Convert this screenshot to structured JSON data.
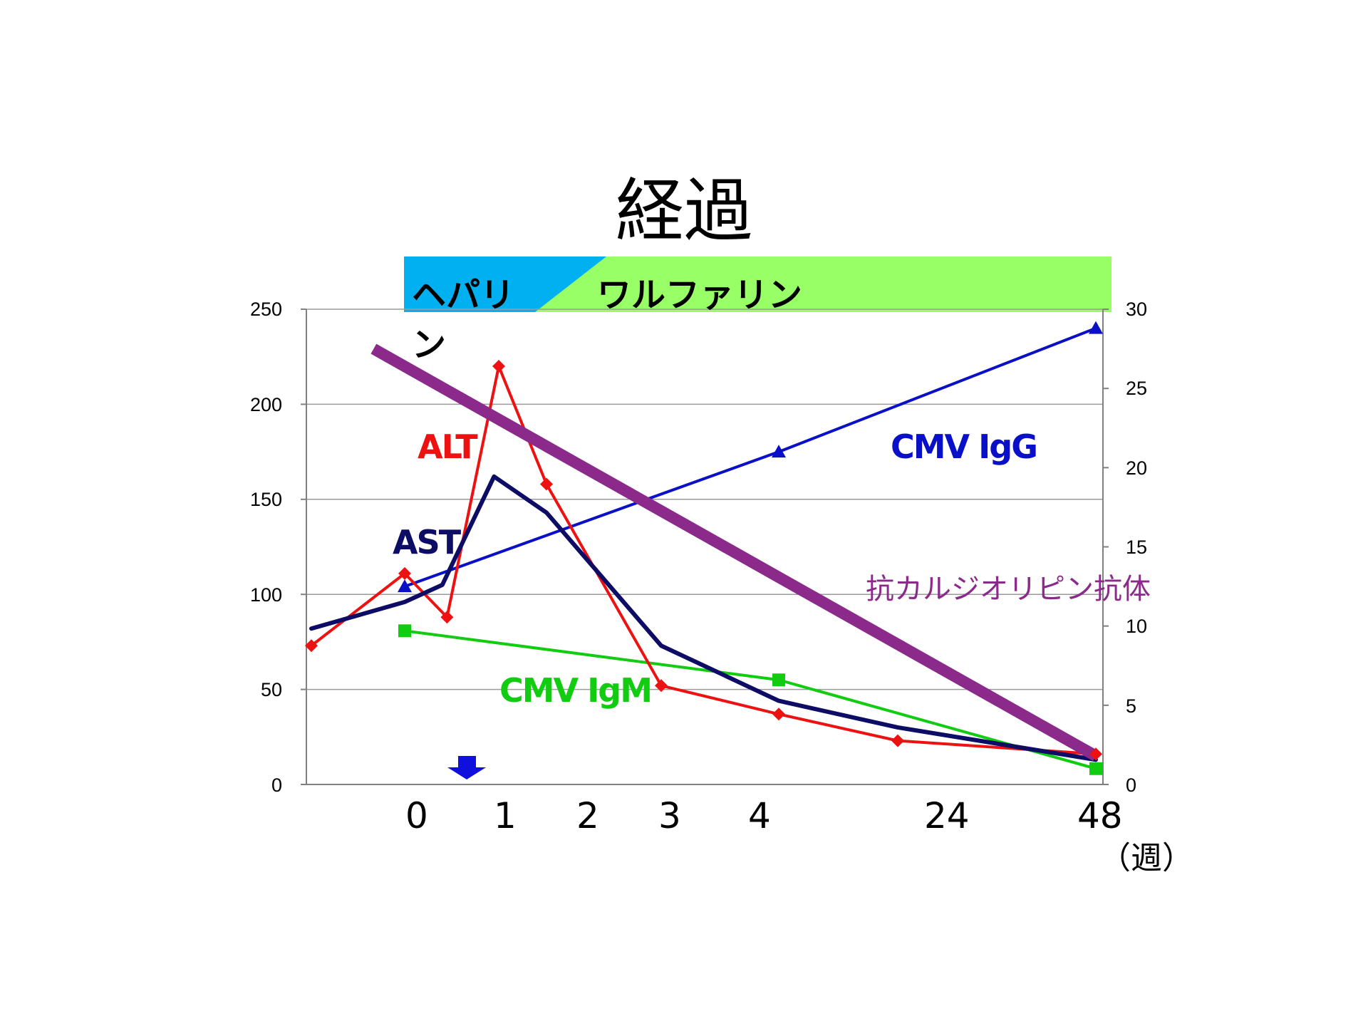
{
  "slide": {
    "title": "経過"
  },
  "treatment_bar": {
    "heparin_label_line1": "ヘパリ",
    "heparin_label_line2": "ン",
    "warfarin_label": "ワルファリン",
    "colors": {
      "heparin": "#00b0f0",
      "warfarin": "#99ff66"
    }
  },
  "chart_data": {
    "type": "line",
    "title": "",
    "x_ticks": [
      "0",
      "1",
      "2",
      "3",
      "4",
      "24",
      "48"
    ],
    "x_unit": "（週）",
    "y_left": {
      "ticks": [
        0,
        50,
        100,
        150,
        200,
        250
      ],
      "range": [
        0,
        250
      ]
    },
    "y_right": {
      "ticks": [
        0,
        5,
        10,
        15,
        20,
        25,
        30
      ],
      "range": [
        0,
        30
      ]
    },
    "grid": true,
    "series": [
      {
        "name": "ALT",
        "axis": "left",
        "color": "#ee1111",
        "marker": "diamond",
        "x": [
          -1.2,
          0,
          0.45,
          1,
          1.5,
          3,
          4,
          24,
          48
        ],
        "y": [
          73,
          111,
          88,
          220,
          158,
          52,
          37,
          23,
          16
        ]
      },
      {
        "name": "AST",
        "axis": "left",
        "color": "#0d0d66",
        "marker": "none",
        "x": [
          -1.2,
          0,
          0.4,
          0.95,
          1.5,
          3,
          4,
          24,
          48
        ],
        "y": [
          82,
          96,
          105,
          162,
          143,
          73,
          44,
          30,
          13
        ]
      },
      {
        "name": "CMV IgG",
        "axis": "right",
        "color": "#0a10c8",
        "marker": "triangle",
        "x": [
          0,
          4,
          48
        ],
        "y": [
          12.5,
          21,
          28.8
        ]
      },
      {
        "name": "CMV IgM",
        "axis": "right",
        "color": "#11cc11",
        "marker": "square",
        "x": [
          0,
          4,
          48
        ],
        "y": [
          9.7,
          6.6,
          1
        ]
      },
      {
        "name": "抗カルジオリピン抗体",
        "axis": "right",
        "color": "#8b2a8b",
        "marker": "none",
        "style": "thick-trend",
        "x": [
          -0.4,
          48
        ],
        "y": [
          27.5,
          1.8
        ]
      }
    ],
    "event_marker": {
      "x": 0.6,
      "shape": "down-arrow",
      "color": "#1010dd"
    }
  }
}
